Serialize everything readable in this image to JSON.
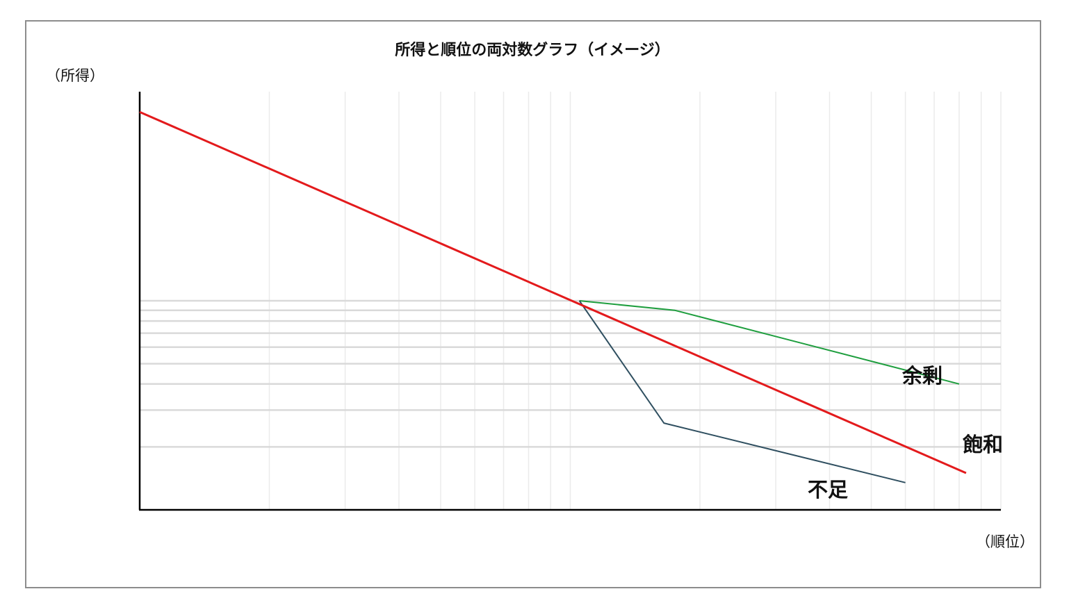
{
  "chart_data": {
    "type": "line",
    "title": "所得と順位の両対数グラフ（イメージ）",
    "ylabel": "（所得）",
    "xlabel": "（順位）",
    "xscale": "log",
    "yscale": "log",
    "xlim": [
      1,
      100
    ],
    "ylim": [
      1,
      100
    ],
    "grid": true,
    "x_tick_labels_shown": false,
    "y_tick_labels_shown": false,
    "series": [
      {
        "name": "飽和",
        "color": "#e31a1c",
        "stroke": "thick",
        "x": [
          1,
          83
        ],
        "y": [
          80,
          1.5
        ]
      },
      {
        "name": "余剰",
        "color": "#1e9e3e",
        "stroke": "thin",
        "x": [
          10.5,
          17.5,
          80
        ],
        "y": [
          10,
          9,
          4
        ]
      },
      {
        "name": "不足",
        "color": "#2f4f60",
        "stroke": "thin",
        "x": [
          10.5,
          16.5,
          60
        ],
        "y": [
          10,
          2.6,
          1.35
        ]
      }
    ]
  },
  "colors": {
    "frame": "#8c8c8c",
    "grid": "#d9d9d9",
    "axis": "#000000"
  }
}
